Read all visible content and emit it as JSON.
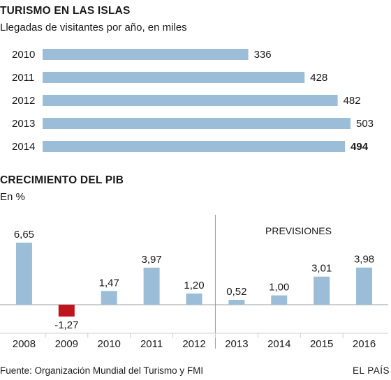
{
  "colors": {
    "bar": "#9bbdd8",
    "negative": "#c0151e",
    "grid": "#9c9c9c",
    "text": "#1a1a1a"
  },
  "footer": {
    "source": "Fuente: Organización Mundial del Turismo y FMI",
    "brand": "EL PAÍS"
  },
  "chart_data": [
    {
      "type": "bar",
      "orientation": "horizontal",
      "title": "TURISMO EN LAS ISLAS",
      "subtitle": "Llegadas de visitantes por año, en miles",
      "categories": [
        "2010",
        "2011",
        "2012",
        "2013",
        "2014"
      ],
      "values": [
        336,
        428,
        482,
        503,
        494
      ],
      "value_labels": [
        "336",
        "428",
        "482",
        "503",
        "494"
      ],
      "highlight_index": 4,
      "xlim": [
        0,
        503
      ]
    },
    {
      "type": "bar",
      "orientation": "vertical",
      "title": "CRECIMIENTO DEL PIB",
      "subtitle": "En %",
      "annotation": "PREVISIONES",
      "forecast_start_index": 5,
      "categories": [
        "2008",
        "2009",
        "2010",
        "2011",
        "2012",
        "2013",
        "2014",
        "2015",
        "2016"
      ],
      "values": [
        6.65,
        -1.27,
        1.47,
        3.97,
        1.2,
        0.52,
        1.0,
        3.01,
        3.98
      ],
      "value_labels": [
        "6,65",
        "-1,27",
        "1,47",
        "3,97",
        "1,20",
        "0,52",
        "1,00",
        "3,01",
        "3,98"
      ],
      "ylim": [
        -1.27,
        6.65
      ]
    }
  ]
}
